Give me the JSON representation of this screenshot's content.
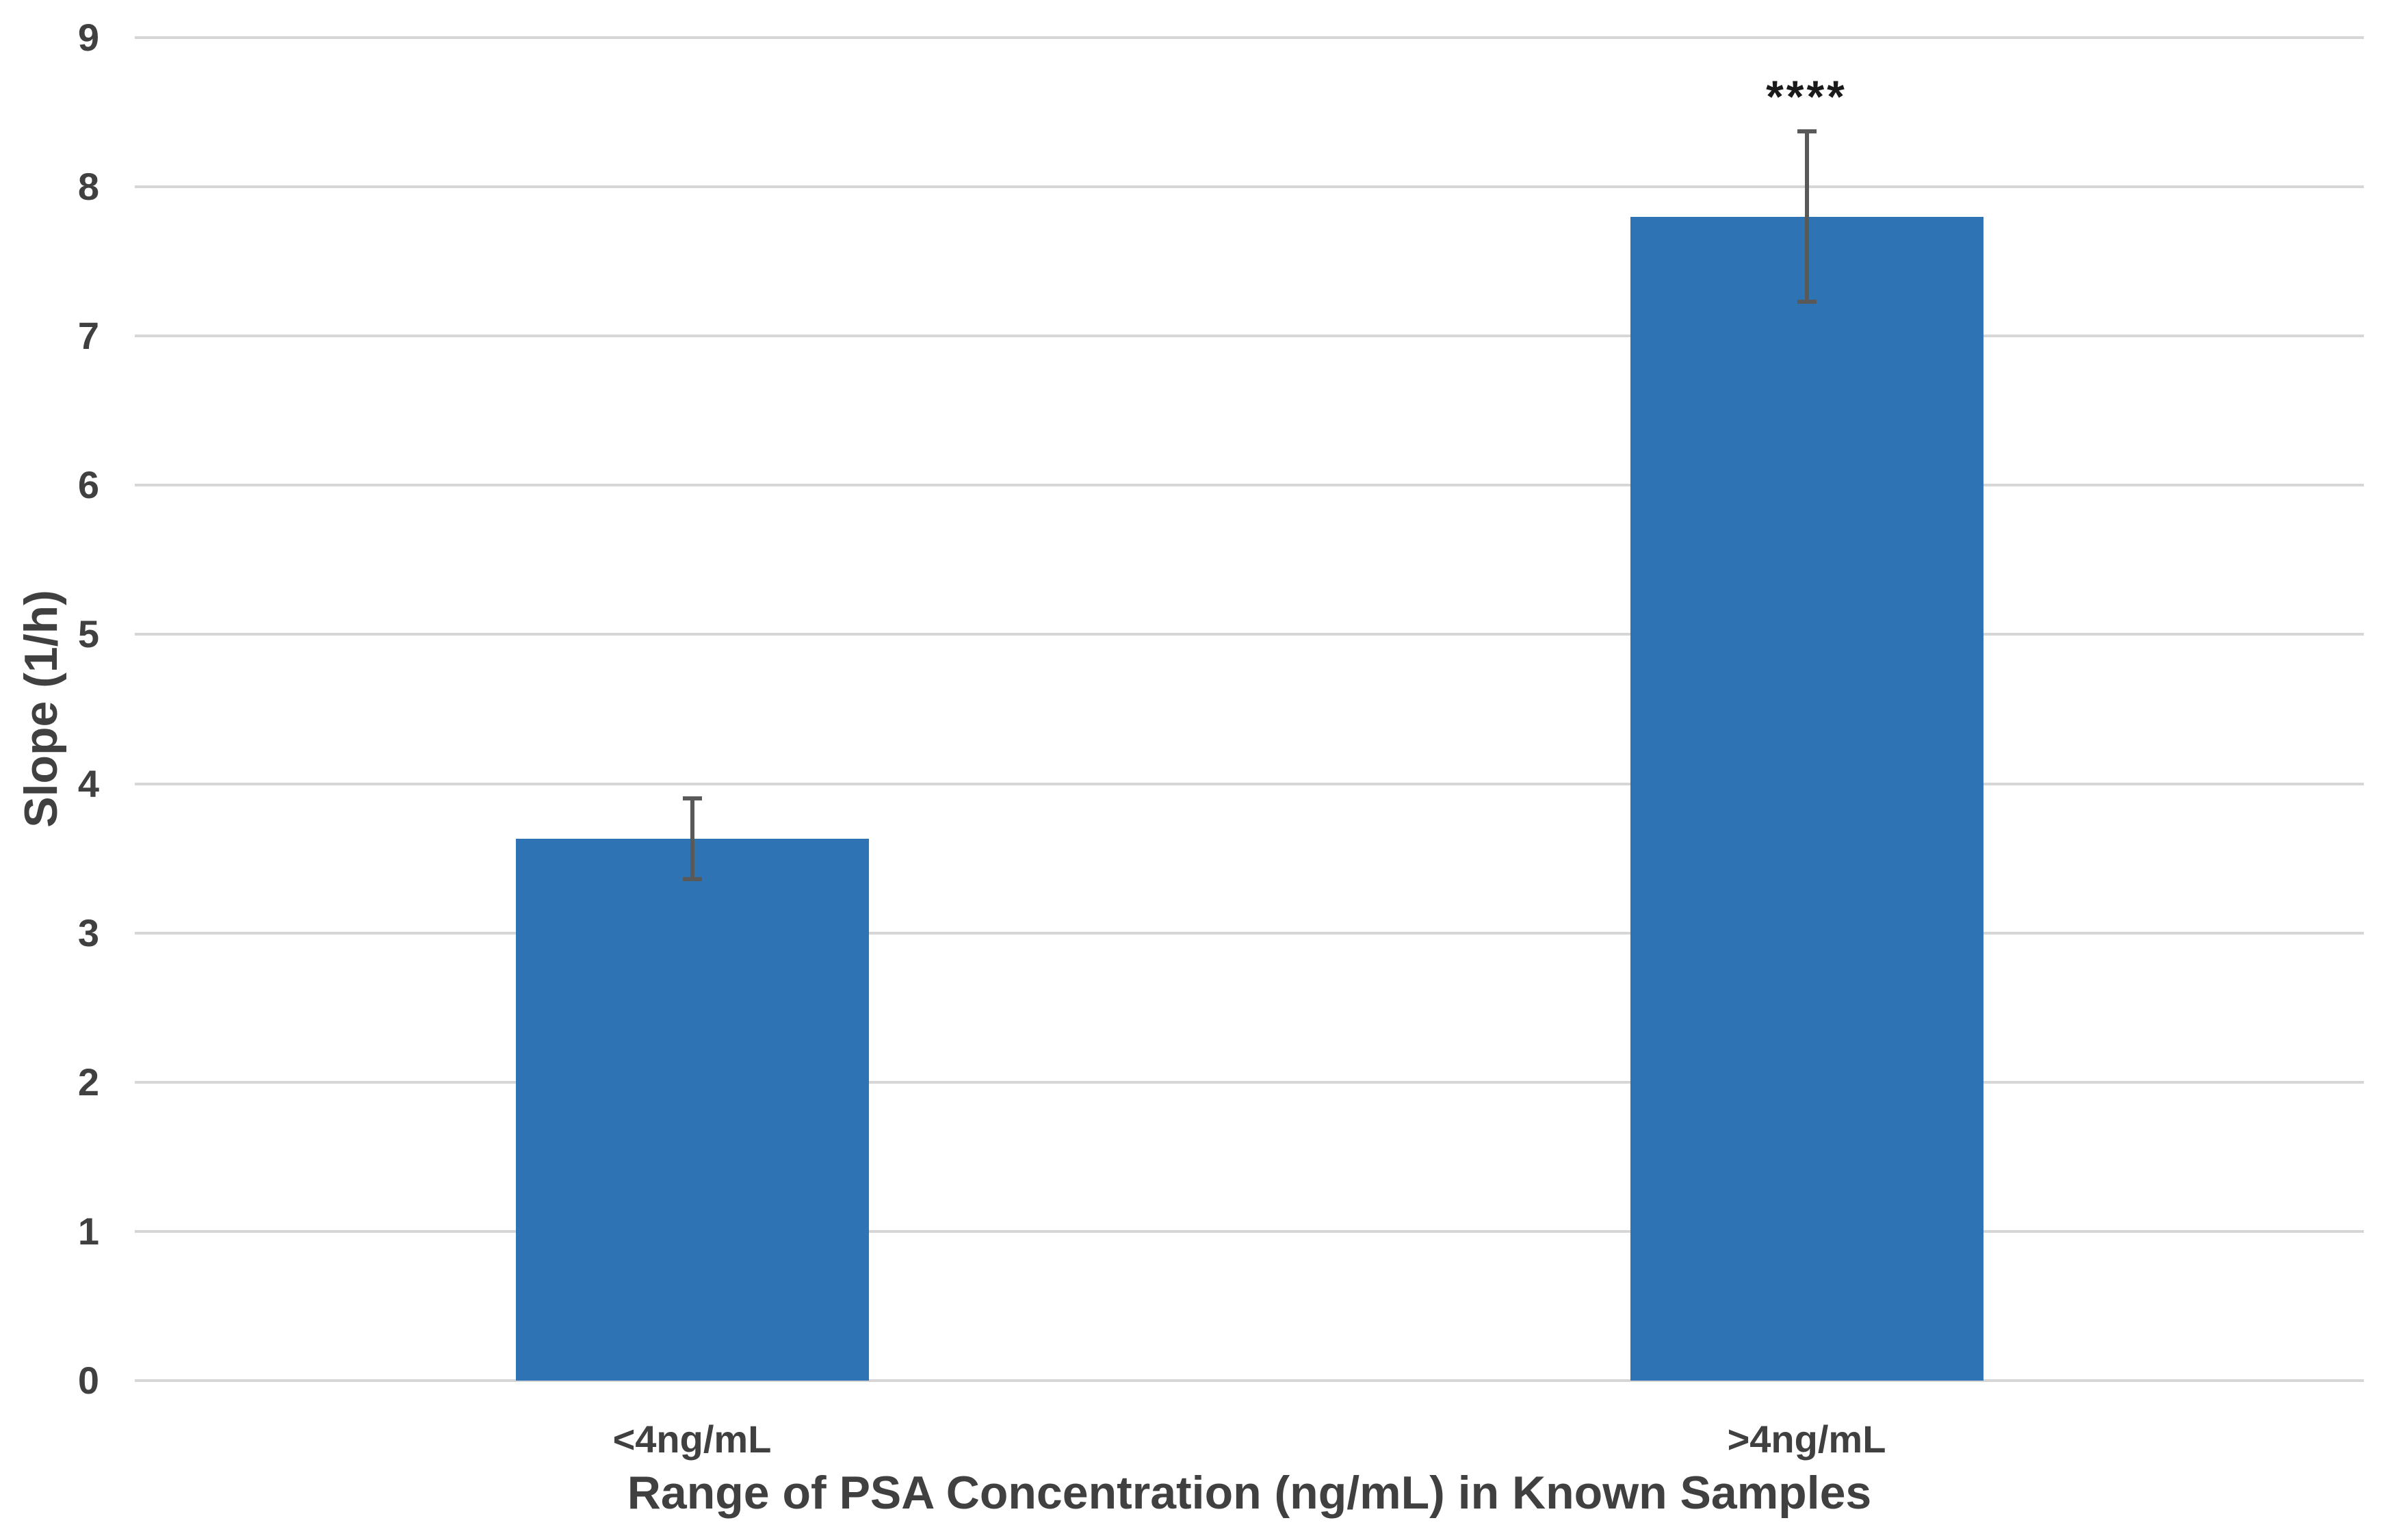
{
  "chart_data": {
    "type": "bar",
    "title": "",
    "categories": [
      "<4ng/mL",
      ">4ng/mL"
    ],
    "values": [
      3.63,
      7.8
    ],
    "error_bars": [
      0.27,
      0.57
    ],
    "significance_labels": [
      "",
      "****"
    ],
    "xlabel": "Range of PSA Concentration (ng/mL) in Known Samples",
    "ylabel": "Slope (1/h)",
    "ylim": [
      0,
      9
    ],
    "yticks": [
      0,
      1,
      2,
      3,
      4,
      5,
      6,
      7,
      8,
      9
    ],
    "grid": "horizontal",
    "legend": "none"
  },
  "colors": {
    "bar_fill": "#2E74B5",
    "gridline": "#D6D6D6",
    "axis_text": "#404040",
    "error_bar": "#595959",
    "significance": "#1A1A1A",
    "background": "#FFFFFF"
  }
}
